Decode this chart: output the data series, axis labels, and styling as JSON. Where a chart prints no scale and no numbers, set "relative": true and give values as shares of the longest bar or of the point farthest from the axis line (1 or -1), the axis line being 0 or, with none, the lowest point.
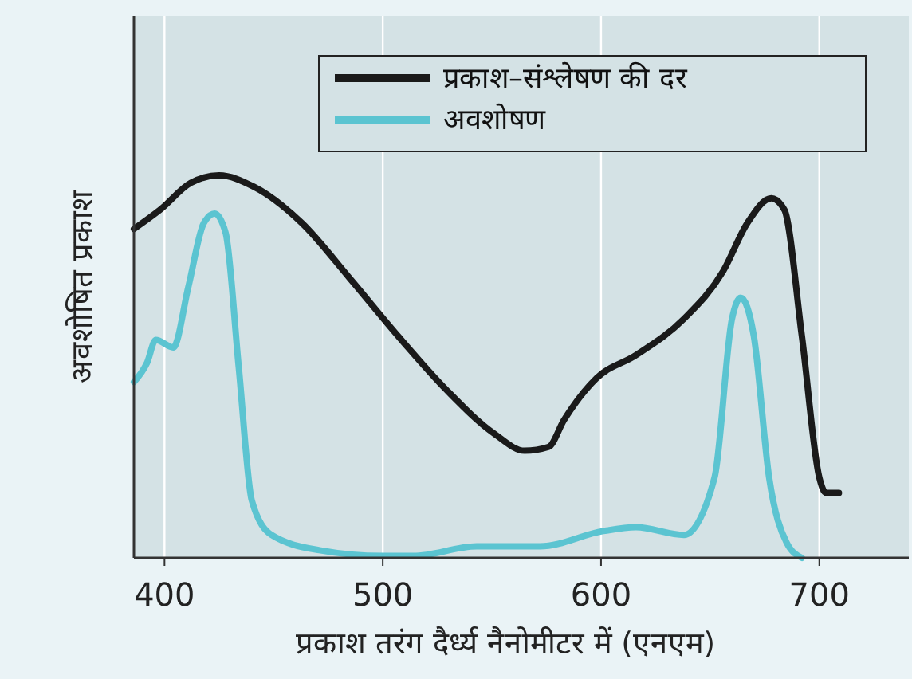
{
  "chart_data": {
    "type": "line",
    "relative": true,
    "xlabel": "प्रकाश तरंग दैर्ध्य नैनोमीटर में (एनएम)",
    "ylabel": "अवशोषित प्रकाश",
    "xlim": [
      386,
      741
    ],
    "xticks": [
      400,
      500,
      600,
      700
    ],
    "grid": "x",
    "legend": "top right",
    "line_style": "solid",
    "series": [
      {
        "name": "प्रकाश–संश्लेषण की दर",
        "color": "#1a1a1a",
        "x": [
          386,
          398,
          412,
          425,
          441,
          463,
          485,
          507,
          529,
          551,
          565,
          576,
          583,
          598,
          616,
          638,
          656,
          667,
          678,
          684,
          692,
          700,
          703,
          709
        ],
        "values": [
          0.86,
          0.91,
          0.98,
          1,
          0.97,
          0.875,
          0.73,
          0.58,
          0.44,
          0.325,
          0.28,
          0.29,
          0.36,
          0.47,
          0.53,
          0.625,
          0.75,
          0.875,
          0.94,
          0.91,
          0.58,
          0.21,
          0.17,
          0.17
        ]
      },
      {
        "name": "अवशोषण",
        "color": "#5bc4d1",
        "x": [
          386,
          392,
          396,
          404,
          411,
          418,
          423,
          428,
          434,
          440,
          449,
          471,
          500,
          514,
          543,
          572,
          601,
          616,
          638,
          652,
          660,
          664,
          670,
          677,
          685,
          692
        ],
        "values": [
          0.46,
          0.51,
          0.57,
          0.55,
          0.71,
          0.875,
          0.9,
          0.85,
          0.5,
          0.15,
          0.06,
          0.02,
          0.005,
          0.005,
          0.03,
          0.03,
          0.07,
          0.08,
          0.06,
          0.21,
          0.625,
          0.68,
          0.58,
          0.21,
          0.04,
          0
        ]
      }
    ]
  }
}
